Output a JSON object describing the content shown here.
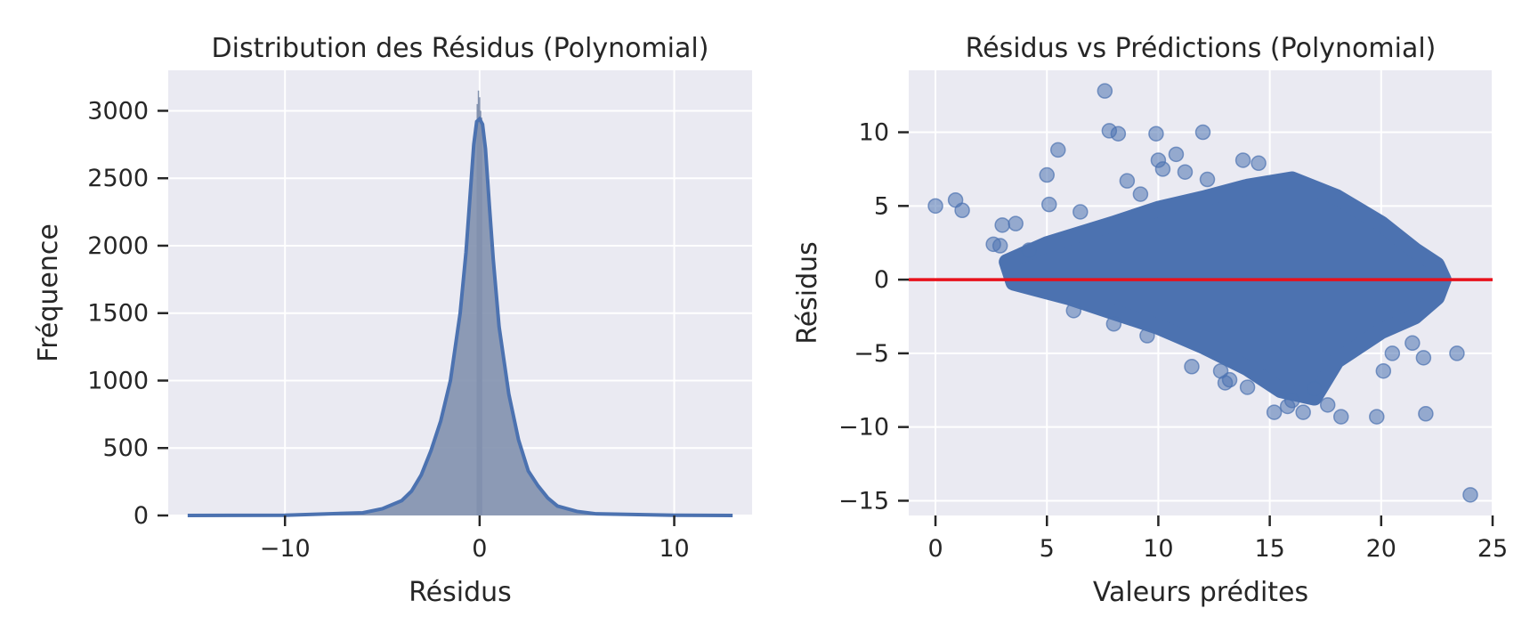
{
  "colors": {
    "panel_bg": "#eaeaf2",
    "series": "#4c72b0",
    "hist_fill": "#8291ae",
    "zero_line": "#e8111b"
  },
  "chart_data": [
    {
      "type": "histogram",
      "title": "Distribution des Résidus (Polynomial)",
      "xlabel": "Résidus",
      "ylabel": "Fréquence",
      "xlim": [
        -16,
        14
      ],
      "ylim": [
        0,
        3300
      ],
      "xticks": [
        -10,
        0,
        10
      ],
      "xtick_labels": [
        "−10",
        "0",
        "10"
      ],
      "yticks": [
        0,
        500,
        1000,
        1500,
        2000,
        2500,
        3000
      ],
      "ytick_labels": [
        "0",
        "500",
        "1000",
        "1500",
        "2000",
        "2500",
        "3000"
      ],
      "grid": true,
      "kde_curve": {
        "x": [
          -15,
          -10,
          -6,
          -5,
          -4,
          -3.5,
          -3,
          -2.5,
          -2,
          -1.5,
          -1,
          -0.7,
          -0.5,
          -0.3,
          -0.15,
          0,
          0.15,
          0.3,
          0.5,
          0.7,
          1,
          1.5,
          2,
          2.5,
          3,
          3.5,
          4,
          5,
          6,
          10,
          13
        ],
        "y": [
          0,
          2,
          20,
          50,
          110,
          180,
          300,
          480,
          700,
          1000,
          1500,
          1950,
          2350,
          2750,
          2920,
          2940,
          2900,
          2720,
          2300,
          1900,
          1400,
          900,
          560,
          330,
          220,
          130,
          70,
          30,
          12,
          2,
          0
        ]
      },
      "peak_spikes": {
        "x": [
          -0.12,
          -0.06,
          0,
          0.05,
          0.1
        ],
        "y": [
          3050,
          3150,
          3100,
          3000,
          2950
        ]
      }
    },
    {
      "type": "scatter",
      "title": "Résidus vs Prédictions (Polynomial)",
      "xlabel": "Valeurs prédites",
      "ylabel": "Résidus",
      "xlim": [
        -1.2,
        25
      ],
      "ylim": [
        -16,
        14.2
      ],
      "xticks": [
        0,
        5,
        10,
        15,
        20,
        25
      ],
      "xtick_labels": [
        "0",
        "5",
        "10",
        "15",
        "20",
        "25"
      ],
      "yticks": [
        -15,
        -10,
        -5,
        0,
        5,
        10
      ],
      "ytick_labels": [
        "−15",
        "−10",
        "−5",
        "0",
        "5",
        "10"
      ],
      "grid": true,
      "reference_line_y": 0,
      "band_outline": {
        "x": [
          3.2,
          5,
          8,
          10,
          12,
          14,
          16,
          18,
          20,
          21.5,
          22.5,
          22.8,
          22.5,
          21.5,
          20,
          18,
          17,
          15.5,
          14,
          12,
          10,
          8,
          6,
          4.5,
          3.5,
          3.2
        ],
        "y": [
          1.2,
          2.4,
          3.8,
          4.8,
          5.5,
          6.3,
          6.8,
          5.6,
          3.8,
          2.0,
          1.0,
          0,
          -1.2,
          -2.5,
          -3.5,
          -5.5,
          -8.0,
          -7.5,
          -6.0,
          -4.5,
          -3.2,
          -2.2,
          -1.2,
          -0.6,
          -0.2,
          1.2
        ]
      },
      "points": {
        "x": [
          0,
          0.9,
          1.2,
          2.6,
          2.9,
          3.0,
          3.6,
          5.0,
          5.1,
          5.5,
          6.5,
          7.6,
          7.8,
          8.2,
          8.6,
          9.2,
          9.9,
          10.0,
          10.2,
          10.8,
          11.2,
          12.0,
          12.2,
          12.8,
          13.0,
          13.8,
          14.5,
          15.2,
          15.8,
          14.0,
          16.5,
          17.0,
          18.2,
          19.8,
          20.1,
          20.5,
          21.4,
          21.9,
          22.0,
          23.4,
          24.0,
          17.6,
          16.0,
          13.2,
          11.5,
          9.5,
          8.0,
          6.2,
          4.2
        ],
        "y": [
          5.0,
          5.4,
          4.7,
          2.4,
          2.3,
          3.7,
          3.8,
          7.1,
          5.1,
          8.8,
          4.6,
          12.8,
          10.1,
          9.9,
          6.7,
          5.8,
          9.9,
          8.1,
          7.5,
          8.5,
          7.3,
          10.0,
          6.8,
          -6.2,
          -7.0,
          8.1,
          7.9,
          -9.0,
          -8.6,
          -7.3,
          -9.0,
          -7.4,
          -9.3,
          -9.3,
          -6.2,
          -5.0,
          -4.3,
          -5.3,
          -9.1,
          -5.0,
          -14.6,
          -8.5,
          -8.2,
          -6.8,
          -5.9,
          -3.8,
          -3.0,
          -2.1,
          2.0
        ]
      }
    }
  ]
}
